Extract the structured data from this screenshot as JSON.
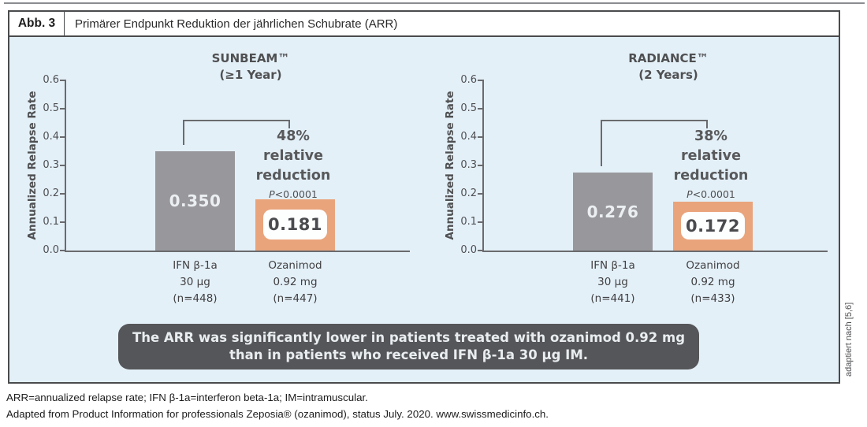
{
  "figure": {
    "label": "Abb. 3",
    "title": "Primärer Endpunkt Reduktion der jährlichen Schubrate (ARR)"
  },
  "side_note": "adaptiert nach [5,6]",
  "summary_box": {
    "line1": "The ARR was significantly lower in patients treated with ozanimod 0.92 mg",
    "line2": "than in patients who received IFN β-1a 30 µg IM."
  },
  "footnotes": {
    "line1": "ARR=annualized relapse rate; IFN β-1a=interferon beta-1a; IM=intramuscular.",
    "line2": "Adapted from Product Information for professionals Zeposia® (ozanimod), status July. 2020. www.swissmedicinfo.ch."
  },
  "colors": {
    "panel_bg": "#e4f0f8",
    "bar_gray": "#98989c",
    "accent_orange": "#e9a47c",
    "dark_box_bg": "#555659",
    "text_dark": "#58595b",
    "line_gray": "#6a6b6e"
  },
  "chart_data": [
    {
      "type": "bar",
      "title": "SUNBEAM™",
      "subtitle": "(≥1 Year)",
      "ylabel": "Annualized Relapse Rate",
      "ylim": [
        0.0,
        0.6
      ],
      "ytick_labels": [
        "0.0",
        "0.1",
        "0.2",
        "0.3",
        "0.4",
        "0.5",
        "0.6"
      ],
      "grid": false,
      "categories": [
        [
          "IFN β-1a",
          "30 µg",
          "(n=448)"
        ],
        [
          "Ozanimod",
          "0.92 mg",
          "(n=447)"
        ]
      ],
      "values": [
        0.35,
        0.181
      ],
      "value_labels": [
        "0.350",
        "0.181"
      ],
      "annotation": {
        "percent": "48%",
        "label": "relative reduction",
        "p_italic": "P",
        "p_rest": "<0.0001"
      }
    },
    {
      "type": "bar",
      "title": "RADIANCE™",
      "subtitle": "(2 Years)",
      "ylabel": "Annualized Relapse Rate",
      "ylim": [
        0.0,
        0.6
      ],
      "ytick_labels": [
        "0.0",
        "0.1",
        "0.2",
        "0.3",
        "0.4",
        "0.5",
        "0.6"
      ],
      "grid": false,
      "categories": [
        [
          "IFN β-1a",
          "30 µg",
          "(n=441)"
        ],
        [
          "Ozanimod",
          "0.92 mg",
          "(n=433)"
        ]
      ],
      "values": [
        0.276,
        0.172
      ],
      "value_labels": [
        "0.276",
        "0.172"
      ],
      "annotation": {
        "percent": "38%",
        "label": "relative reduction",
        "p_italic": "P",
        "p_rest": "<0.0001"
      }
    }
  ]
}
